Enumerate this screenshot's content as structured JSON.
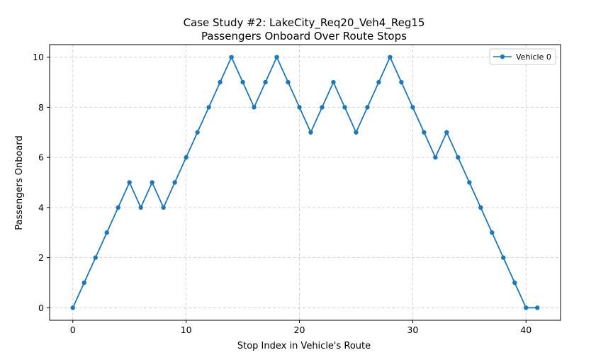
{
  "chart_data": {
    "type": "line",
    "title_line1": "Case Study #2: LakeCity_Req20_Veh4_Reg15",
    "title_line2": "Passengers Onboard Over Route Stops",
    "xlabel": "Stop Index in Vehicle's Route",
    "ylabel": "Passengers Onboard",
    "xlim": [
      -2.05,
      43.05
    ],
    "ylim": [
      -0.5,
      10.5
    ],
    "xticks": [
      0,
      10,
      20,
      30,
      40
    ],
    "yticks": [
      0,
      2,
      4,
      6,
      8,
      10
    ],
    "grid": true,
    "legend_position": "top-right",
    "series": [
      {
        "name": "Vehicle 0",
        "color": "#1f77b4",
        "marker": "circle",
        "x": [
          0,
          1,
          2,
          3,
          4,
          5,
          6,
          7,
          8,
          9,
          10,
          11,
          12,
          13,
          14,
          15,
          16,
          17,
          18,
          19,
          20,
          21,
          22,
          23,
          24,
          25,
          26,
          27,
          28,
          29,
          30,
          31,
          32,
          33,
          34,
          35,
          36,
          37,
          38,
          39,
          40,
          41
        ],
        "y": [
          0,
          1,
          2,
          3,
          4,
          5,
          4,
          5,
          4,
          5,
          6,
          7,
          8,
          9,
          10,
          9,
          8,
          9,
          10,
          9,
          8,
          7,
          8,
          9,
          8,
          7,
          8,
          9,
          10,
          9,
          8,
          7,
          6,
          7,
          6,
          5,
          4,
          3,
          2,
          1,
          0,
          0
        ]
      }
    ]
  }
}
